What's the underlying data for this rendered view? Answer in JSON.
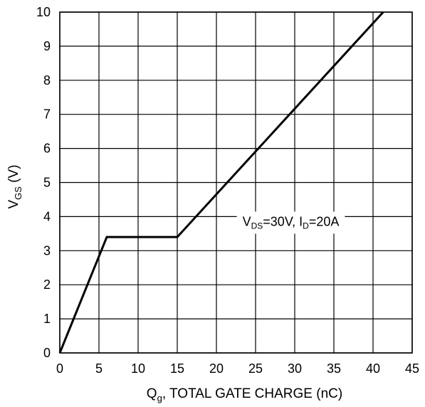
{
  "chart_data": {
    "type": "line",
    "title": "",
    "xlabel": {
      "main": "Q",
      "sub": "g",
      "rest": ", TOTAL GATE CHARGE  (nC)"
    },
    "ylabel": {
      "main": "V",
      "sub": "GS",
      "rest": " (V)"
    },
    "xlim": [
      0,
      45
    ],
    "ylim": [
      0,
      10
    ],
    "x_ticks": [
      0,
      5,
      10,
      15,
      20,
      25,
      30,
      35,
      40,
      45
    ],
    "y_ticks": [
      0,
      1,
      2,
      3,
      4,
      5,
      6,
      7,
      8,
      9,
      10
    ],
    "grid": true,
    "series": [
      {
        "points": [
          {
            "x": 0,
            "y": 0
          },
          {
            "x": 6,
            "y": 3.4
          },
          {
            "x": 15,
            "y": 3.4
          },
          {
            "x": 41.3,
            "y": 10
          }
        ]
      }
    ],
    "annotation": {
      "v": "V",
      "v_sub": "DS",
      "v_text": "=30V, I",
      "i_sub": "D",
      "i_text": "=20A",
      "x": 29.5,
      "y": 4.0
    },
    "colors": {
      "line": "#000000",
      "grid": "#000000",
      "background": "#ffffff"
    }
  }
}
